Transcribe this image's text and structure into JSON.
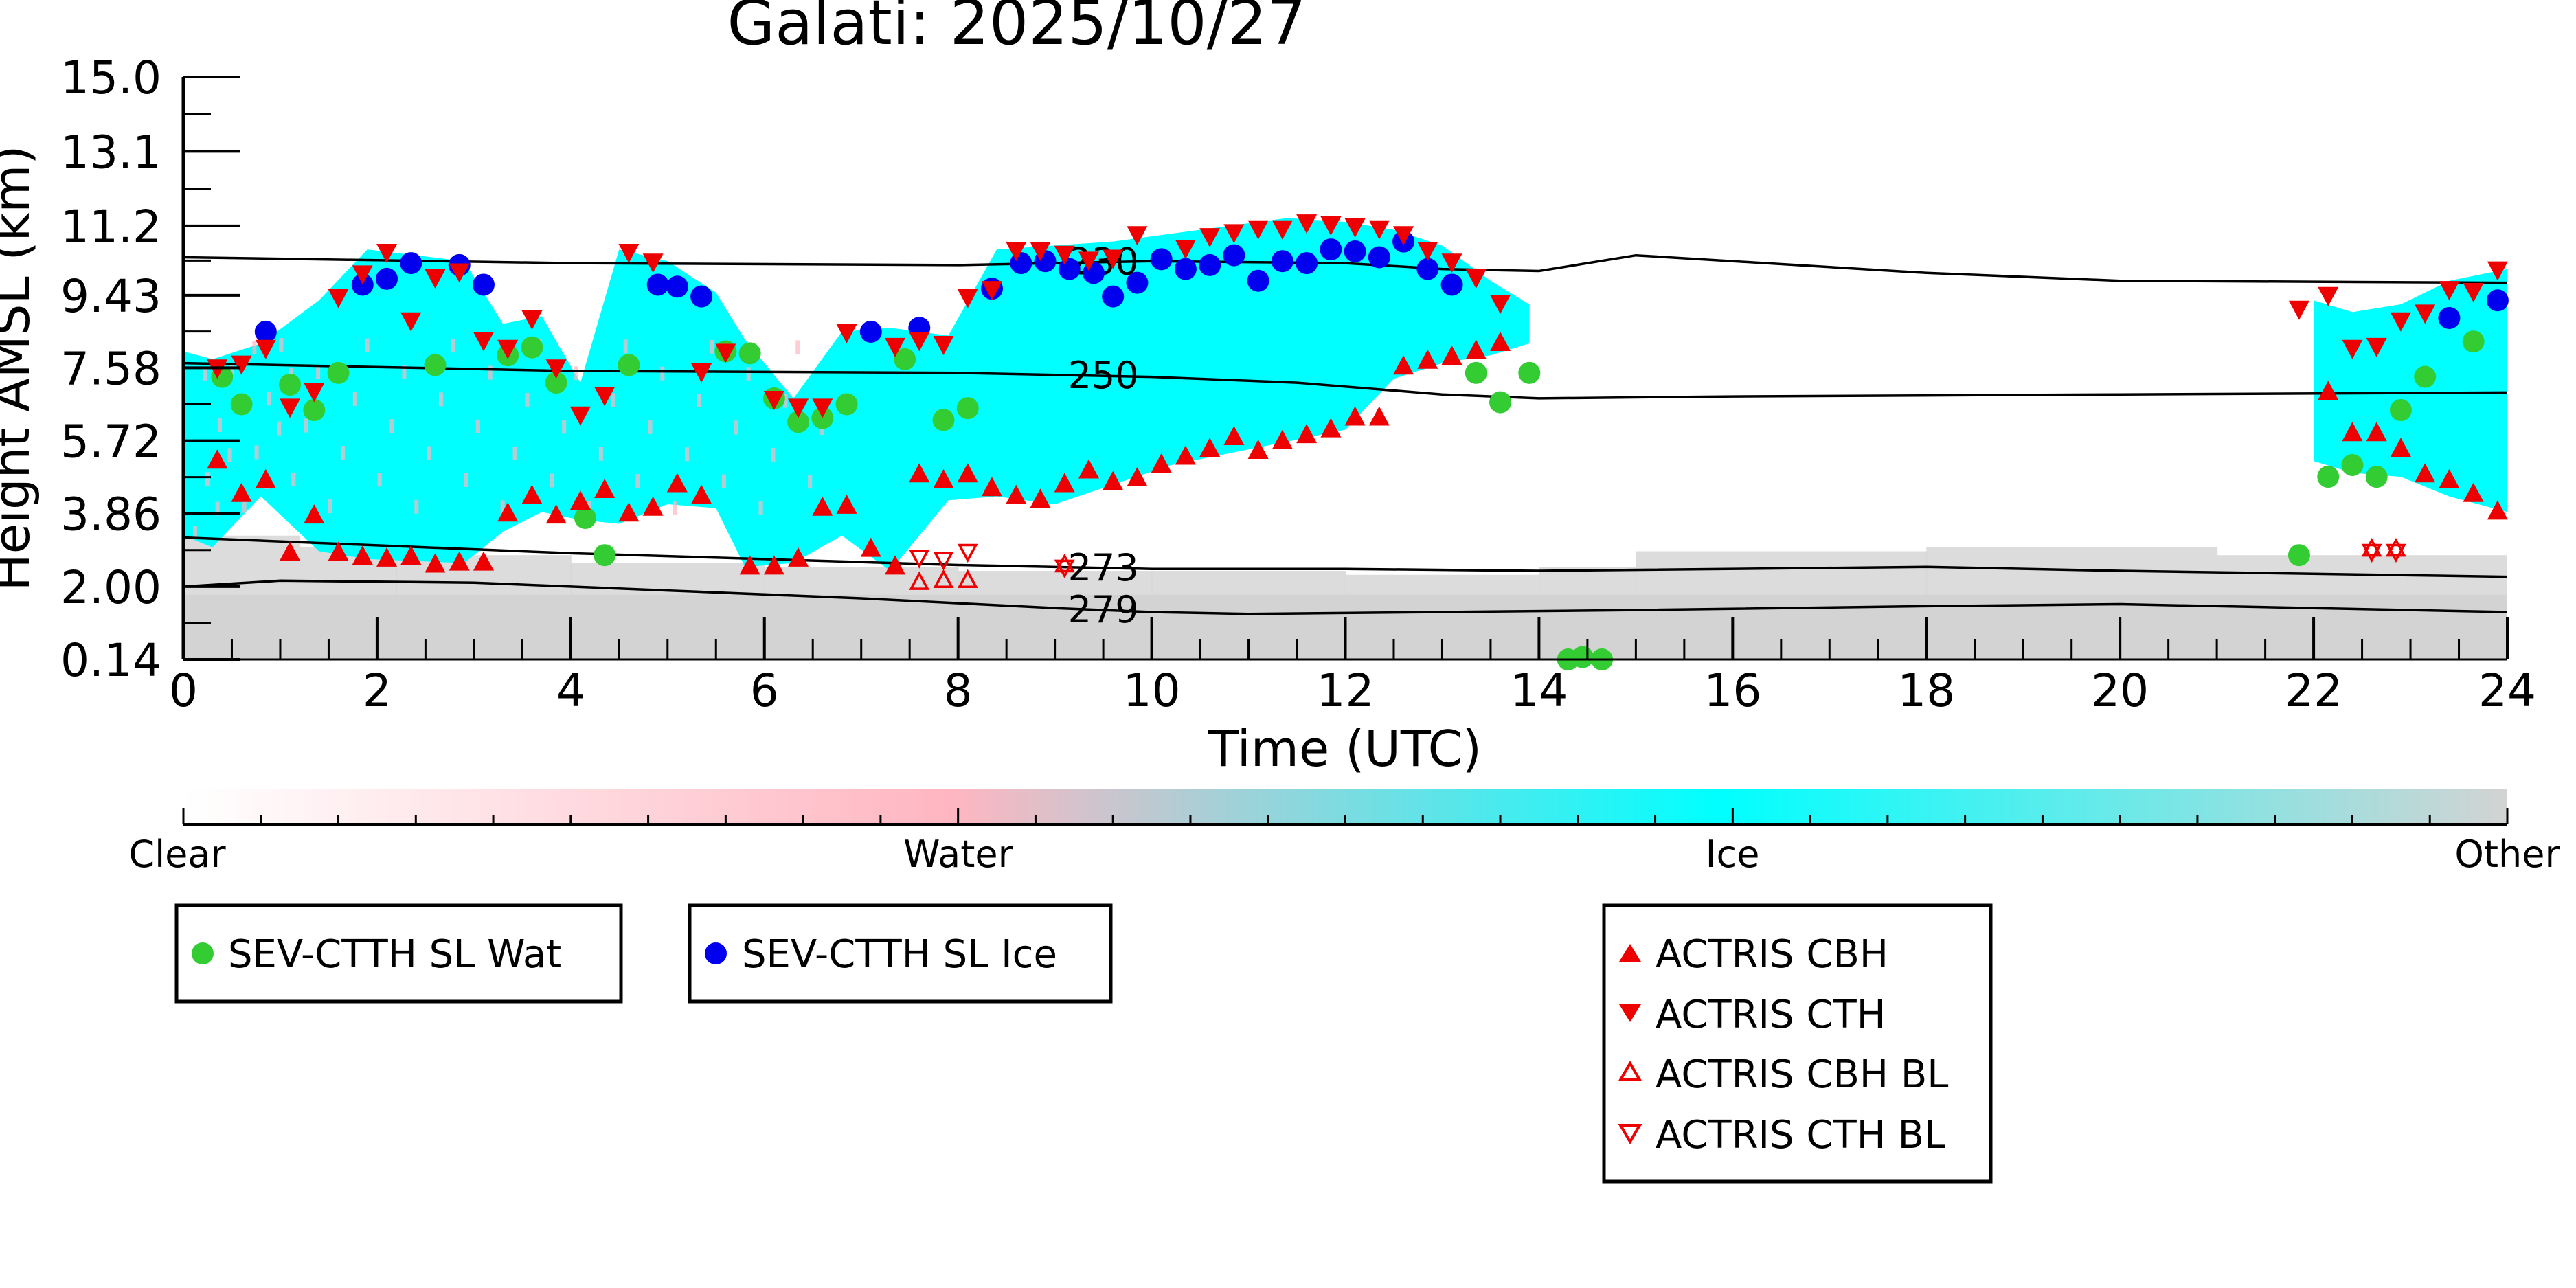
{
  "chart_data": {
    "type": "scatter",
    "title": "Galati: 2025/10/27",
    "xlabel": "Time (UTC)",
    "ylabel": "Height AMSL (km)",
    "xlim": [
      0,
      24
    ],
    "ylim": [
      0.14,
      15.0
    ],
    "x_ticks": [
      "0",
      "2",
      "4",
      "6",
      "8",
      "10",
      "12",
      "14",
      "16",
      "18",
      "20",
      "22",
      "24"
    ],
    "y_ticks": [
      "0.14",
      "2.00",
      "3.86",
      "5.72",
      "7.58",
      "9.43",
      "11.2",
      "13.1",
      "15.0"
    ],
    "grid": false,
    "colorbar": {
      "labels": [
        "Clear",
        "Water",
        "Ice",
        "Other"
      ],
      "colors": [
        "#ffffff",
        "#ffb6c1",
        "#00ffff",
        "#d3d3d3"
      ]
    },
    "isotherms": [
      {
        "label": "230",
        "points": [
          [
            0,
            10.4
          ],
          [
            4,
            10.25
          ],
          [
            8,
            10.2
          ],
          [
            10,
            10.3
          ],
          [
            12,
            10.25
          ],
          [
            13,
            10.1
          ],
          [
            14,
            10.05
          ],
          [
            15,
            10.45
          ],
          [
            16,
            10.3
          ],
          [
            18,
            10.0
          ],
          [
            20,
            9.8
          ],
          [
            24,
            9.75
          ]
        ]
      },
      {
        "label": "250",
        "points": [
          [
            0,
            7.7
          ],
          [
            4,
            7.5
          ],
          [
            8,
            7.45
          ],
          [
            10,
            7.35
          ],
          [
            11.5,
            7.2
          ],
          [
            13,
            6.9
          ],
          [
            14,
            6.8
          ],
          [
            16,
            6.85
          ],
          [
            20,
            6.9
          ],
          [
            24,
            6.95
          ]
        ]
      },
      {
        "label": "273",
        "points": [
          [
            0,
            3.25
          ],
          [
            2,
            3.05
          ],
          [
            4,
            2.85
          ],
          [
            6,
            2.7
          ],
          [
            8,
            2.55
          ],
          [
            10,
            2.45
          ],
          [
            12,
            2.45
          ],
          [
            14,
            2.4
          ],
          [
            18,
            2.5
          ],
          [
            20,
            2.4
          ],
          [
            24,
            2.25
          ]
        ]
      },
      {
        "label": "279",
        "points": [
          [
            0,
            2.0
          ],
          [
            1,
            2.15
          ],
          [
            3,
            2.1
          ],
          [
            5,
            1.9
          ],
          [
            7,
            1.7
          ],
          [
            9,
            1.45
          ],
          [
            10,
            1.35
          ],
          [
            11,
            1.3
          ],
          [
            13,
            1.35
          ],
          [
            15,
            1.4
          ],
          [
            18,
            1.5
          ],
          [
            20,
            1.55
          ],
          [
            22,
            1.45
          ],
          [
            24,
            1.35
          ]
        ]
      }
    ],
    "series": [
      {
        "name": "SEV-CTTH SL Wat",
        "color": "#33cc33",
        "marker": "circle",
        "points": [
          [
            0.4,
            7.35
          ],
          [
            0.6,
            6.65
          ],
          [
            1.1,
            7.15
          ],
          [
            1.35,
            6.5
          ],
          [
            1.6,
            7.45
          ],
          [
            2.6,
            7.65
          ],
          [
            3.35,
            7.9
          ],
          [
            3.6,
            8.1
          ],
          [
            3.85,
            7.2
          ],
          [
            4.15,
            3.75
          ],
          [
            4.35,
            2.8
          ],
          [
            4.6,
            7.65
          ],
          [
            5.6,
            8.0
          ],
          [
            5.85,
            7.95
          ],
          [
            6.1,
            6.8
          ],
          [
            6.35,
            6.2
          ],
          [
            6.6,
            6.3
          ],
          [
            6.85,
            6.65
          ],
          [
            7.45,
            7.8
          ],
          [
            7.85,
            6.25
          ],
          [
            8.1,
            6.55
          ],
          [
            13.35,
            7.45
          ],
          [
            13.6,
            6.7
          ],
          [
            13.9,
            7.45
          ],
          [
            14.3,
            0.14
          ],
          [
            14.45,
            0.2
          ],
          [
            14.65,
            0.14
          ],
          [
            21.85,
            2.8
          ],
          [
            22.15,
            4.8
          ],
          [
            22.4,
            5.1
          ],
          [
            22.65,
            4.8
          ],
          [
            22.9,
            6.5
          ],
          [
            23.15,
            7.35
          ],
          [
            23.65,
            8.25
          ]
        ]
      },
      {
        "name": "SEV-CTTH SL Ice",
        "color": "#0000ee",
        "marker": "circle",
        "points": [
          [
            0.85,
            8.5
          ],
          [
            1.85,
            9.7
          ],
          [
            2.1,
            9.85
          ],
          [
            2.35,
            10.25
          ],
          [
            2.85,
            10.2
          ],
          [
            3.1,
            9.7
          ],
          [
            4.9,
            9.7
          ],
          [
            5.1,
            9.65
          ],
          [
            5.35,
            9.4
          ],
          [
            7.1,
            8.5
          ],
          [
            7.6,
            8.6
          ],
          [
            8.35,
            9.6
          ],
          [
            8.65,
            10.25
          ],
          [
            8.9,
            10.3
          ],
          [
            9.15,
            10.1
          ],
          [
            9.4,
            10.0
          ],
          [
            9.6,
            9.4
          ],
          [
            9.85,
            9.75
          ],
          [
            10.1,
            10.35
          ],
          [
            10.35,
            10.1
          ],
          [
            10.6,
            10.2
          ],
          [
            10.85,
            10.45
          ],
          [
            11.1,
            9.8
          ],
          [
            11.35,
            10.3
          ],
          [
            11.6,
            10.25
          ],
          [
            11.85,
            10.6
          ],
          [
            12.1,
            10.55
          ],
          [
            12.35,
            10.4
          ],
          [
            12.6,
            10.8
          ],
          [
            12.85,
            10.1
          ],
          [
            13.1,
            9.7
          ],
          [
            23.4,
            8.85
          ],
          [
            23.9,
            9.3
          ]
        ]
      },
      {
        "name": "ACTRIS CBH",
        "color": "#ee0000",
        "marker": "triangle-up",
        "points": [
          [
            0.35,
            5.2
          ],
          [
            0.6,
            4.35
          ],
          [
            0.85,
            4.7
          ],
          [
            1.1,
            2.85
          ],
          [
            1.35,
            3.8
          ],
          [
            1.6,
            2.85
          ],
          [
            1.85,
            2.75
          ],
          [
            2.1,
            2.7
          ],
          [
            2.35,
            2.75
          ],
          [
            2.6,
            2.55
          ],
          [
            2.85,
            2.6
          ],
          [
            3.1,
            2.6
          ],
          [
            3.35,
            3.85
          ],
          [
            3.6,
            4.3
          ],
          [
            3.85,
            3.8
          ],
          [
            4.1,
            4.15
          ],
          [
            4.35,
            4.45
          ],
          [
            4.6,
            3.85
          ],
          [
            4.85,
            4.0
          ],
          [
            5.1,
            4.6
          ],
          [
            5.35,
            4.3
          ],
          [
            5.85,
            2.5
          ],
          [
            6.1,
            2.5
          ],
          [
            6.35,
            2.7
          ],
          [
            6.6,
            4.0
          ],
          [
            6.85,
            4.05
          ],
          [
            7.1,
            2.95
          ],
          [
            7.35,
            2.5
          ],
          [
            7.6,
            4.85
          ],
          [
            7.85,
            4.7
          ],
          [
            8.1,
            4.85
          ],
          [
            8.35,
            4.5
          ],
          [
            8.6,
            4.3
          ],
          [
            8.85,
            4.2
          ],
          [
            9.1,
            4.6
          ],
          [
            9.35,
            4.95
          ],
          [
            9.6,
            4.65
          ],
          [
            9.85,
            4.75
          ],
          [
            10.1,
            5.1
          ],
          [
            10.35,
            5.3
          ],
          [
            10.6,
            5.5
          ],
          [
            10.85,
            5.8
          ],
          [
            11.1,
            5.45
          ],
          [
            11.35,
            5.7
          ],
          [
            11.6,
            5.85
          ],
          [
            11.85,
            6.0
          ],
          [
            12.1,
            6.3
          ],
          [
            12.35,
            6.3
          ],
          [
            12.6,
            7.6
          ],
          [
            12.85,
            7.75
          ],
          [
            13.1,
            7.85
          ],
          [
            13.35,
            8.0
          ],
          [
            13.6,
            8.2
          ],
          [
            22.15,
            6.95
          ],
          [
            22.4,
            5.9
          ],
          [
            22.65,
            5.9
          ],
          [
            22.9,
            5.5
          ],
          [
            23.15,
            4.85
          ],
          [
            23.4,
            4.7
          ],
          [
            23.65,
            4.35
          ],
          [
            23.9,
            3.9
          ]
        ]
      },
      {
        "name": "ACTRIS CTH",
        "color": "#ee0000",
        "marker": "triangle-down",
        "points": [
          [
            0.35,
            7.6
          ],
          [
            0.6,
            7.7
          ],
          [
            0.85,
            8.1
          ],
          [
            1.1,
            6.6
          ],
          [
            1.35,
            7.0
          ],
          [
            1.6,
            9.4
          ],
          [
            1.85,
            10.0
          ],
          [
            2.1,
            10.55
          ],
          [
            2.35,
            8.8
          ],
          [
            2.6,
            9.9
          ],
          [
            2.85,
            10.05
          ],
          [
            3.1,
            8.3
          ],
          [
            3.35,
            8.1
          ],
          [
            3.6,
            8.85
          ],
          [
            3.85,
            7.6
          ],
          [
            4.1,
            6.4
          ],
          [
            4.35,
            6.9
          ],
          [
            4.6,
            10.55
          ],
          [
            4.85,
            10.3
          ],
          [
            5.35,
            7.5
          ],
          [
            5.6,
            8.0
          ],
          [
            6.1,
            6.8
          ],
          [
            6.35,
            6.6
          ],
          [
            6.6,
            6.6
          ],
          [
            6.85,
            8.5
          ],
          [
            7.35,
            8.15
          ],
          [
            7.6,
            8.3
          ],
          [
            7.85,
            8.2
          ],
          [
            8.1,
            9.4
          ],
          [
            8.35,
            9.6
          ],
          [
            8.6,
            10.6
          ],
          [
            8.85,
            10.6
          ],
          [
            9.1,
            10.5
          ],
          [
            9.35,
            10.35
          ],
          [
            9.6,
            10.4
          ],
          [
            9.85,
            11.0
          ],
          [
            10.35,
            10.65
          ],
          [
            10.6,
            10.95
          ],
          [
            10.85,
            11.05
          ],
          [
            11.1,
            11.15
          ],
          [
            11.35,
            11.15
          ],
          [
            11.6,
            11.3
          ],
          [
            11.85,
            11.25
          ],
          [
            12.1,
            11.2
          ],
          [
            12.35,
            11.15
          ],
          [
            12.6,
            11.0
          ],
          [
            12.85,
            10.6
          ],
          [
            13.1,
            10.3
          ],
          [
            13.35,
            9.9
          ],
          [
            13.6,
            9.25
          ],
          [
            21.85,
            9.1
          ],
          [
            22.15,
            9.45
          ],
          [
            22.4,
            8.1
          ],
          [
            22.65,
            8.15
          ],
          [
            22.9,
            8.8
          ],
          [
            23.15,
            9.0
          ],
          [
            23.4,
            9.6
          ],
          [
            23.65,
            9.55
          ],
          [
            23.9,
            10.1
          ]
        ]
      },
      {
        "name": "ACTRIS CBH BL",
        "color": "#ee0000",
        "marker": "triangle-up-open",
        "points": [
          [
            7.6,
            2.1
          ],
          [
            7.85,
            2.15
          ],
          [
            8.1,
            2.15
          ],
          [
            9.1,
            2.55
          ],
          [
            22.6,
            2.95
          ],
          [
            22.85,
            2.95
          ]
        ]
      },
      {
        "name": "ACTRIS CTH BL",
        "color": "#ee0000",
        "marker": "triangle-down-open",
        "points": [
          [
            7.6,
            2.75
          ],
          [
            7.85,
            2.7
          ],
          [
            8.1,
            2.9
          ],
          [
            9.1,
            2.5
          ],
          [
            22.6,
            2.9
          ],
          [
            22.85,
            2.9
          ]
        ]
      }
    ],
    "legend": {
      "box1": [
        "SEV-CTTH SL Wat"
      ],
      "box2": [
        "SEV-CTTH SL Ice"
      ],
      "box3": [
        "ACTRIS CBH",
        "ACTRIS CTH",
        "ACTRIS CBH BL",
        "ACTRIS CTH BL"
      ]
    }
  }
}
